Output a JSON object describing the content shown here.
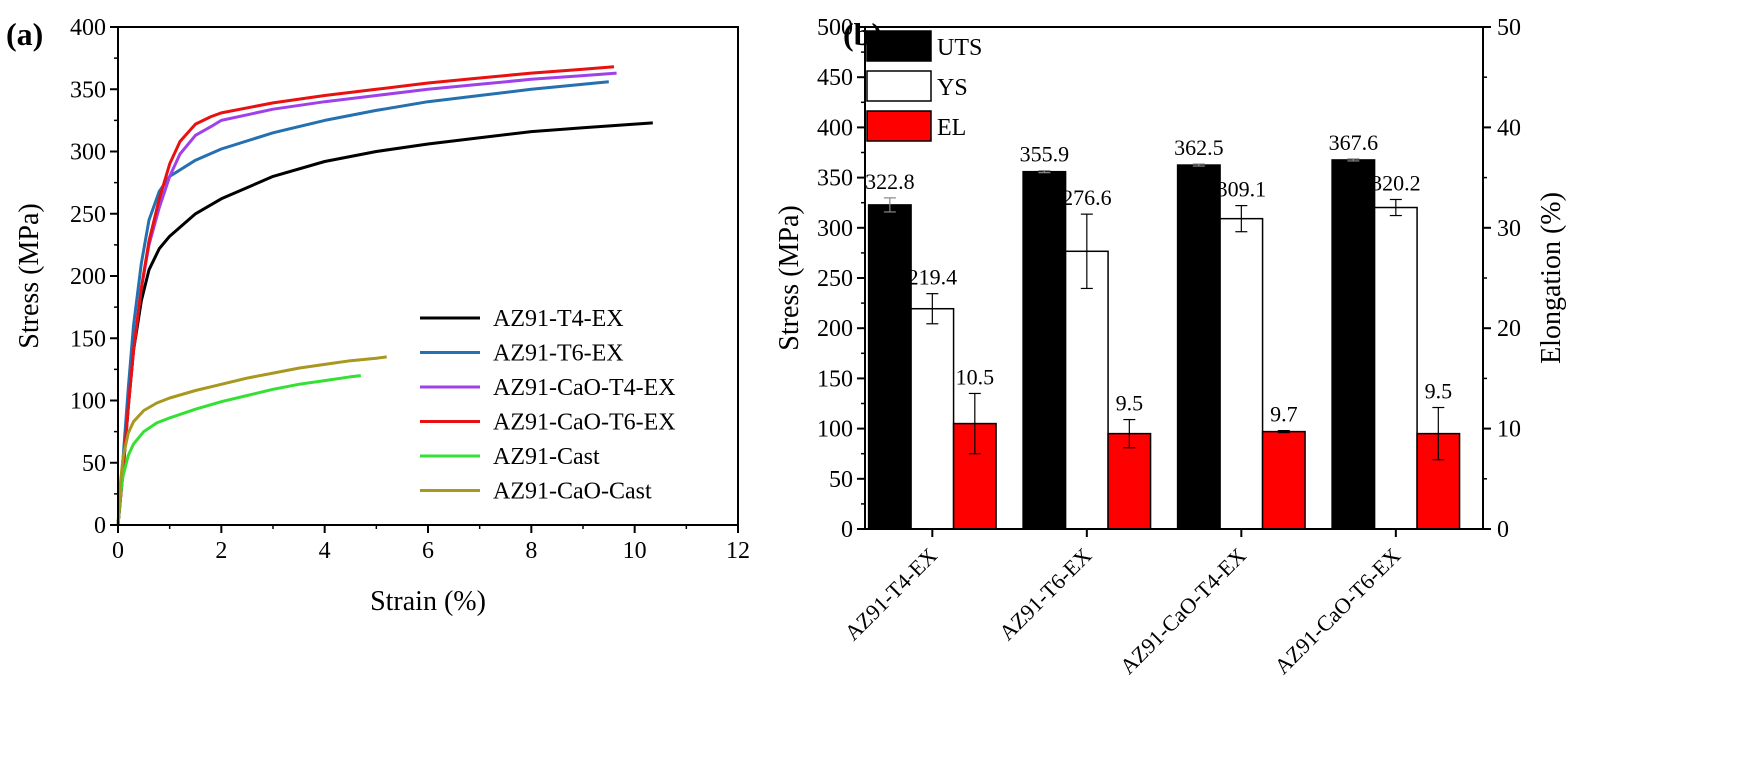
{
  "chart_data": [
    {
      "type": "line",
      "panel_label": "(a)",
      "xlabel": "Strain (%)",
      "ylabel": "Stress (MPa)",
      "xlim": [
        0,
        12
      ],
      "ylim": [
        0,
        400
      ],
      "xticks": [
        "0",
        "2",
        "4",
        "6",
        "8",
        "10",
        "12"
      ],
      "yticks": [
        "0",
        "50",
        "100",
        "150",
        "200",
        "250",
        "300",
        "350",
        "400"
      ],
      "legend_position": "lower-right",
      "grid": false,
      "series": [
        {
          "name": "AZ91-T4-EX",
          "color": "#000000",
          "x": [
            0,
            0.1,
            0.2,
            0.3,
            0.45,
            0.6,
            0.8,
            1.0,
            1.5,
            2.0,
            3.0,
            4.0,
            5.0,
            6.0,
            7.0,
            8.0,
            9.0,
            10.0,
            10.35
          ],
          "y": [
            0,
            45,
            95,
            140,
            180,
            205,
            222,
            232,
            250,
            262,
            280,
            292,
            300,
            306,
            311,
            316,
            319,
            322,
            323
          ]
        },
        {
          "name": "AZ91-T6-EX",
          "color": "#2470b0",
          "x": [
            0,
            0.1,
            0.2,
            0.3,
            0.45,
            0.6,
            0.8,
            1.0,
            1.5,
            2.0,
            3.0,
            4.0,
            5.0,
            6.0,
            7.0,
            8.0,
            9.0,
            9.5
          ],
          "y": [
            0,
            55,
            110,
            160,
            210,
            245,
            268,
            280,
            293,
            302,
            315,
            325,
            333,
            340,
            345,
            350,
            354,
            356
          ]
        },
        {
          "name": "AZ91-CaO-T4-EX",
          "color": "#a040e8",
          "x": [
            0,
            0.1,
            0.2,
            0.3,
            0.45,
            0.6,
            0.8,
            1.0,
            1.2,
            1.5,
            1.8,
            2.0,
            3.0,
            4.0,
            5.0,
            6.0,
            7.0,
            8.0,
            9.0,
            9.65
          ],
          "y": [
            0,
            45,
            95,
            140,
            190,
            225,
            255,
            280,
            298,
            313,
            320,
            325,
            334,
            340,
            345,
            350,
            354,
            358,
            361,
            363
          ]
        },
        {
          "name": "AZ91-CaO-T6-EX",
          "color": "#e81010",
          "x": [
            0,
            0.1,
            0.2,
            0.3,
            0.45,
            0.6,
            0.8,
            1.0,
            1.2,
            1.5,
            1.8,
            2.0,
            3.0,
            4.0,
            5.0,
            6.0,
            7.0,
            8.0,
            9.0,
            9.6
          ],
          "y": [
            0,
            45,
            95,
            140,
            190,
            228,
            262,
            290,
            308,
            322,
            328,
            331,
            339,
            345,
            350,
            355,
            359,
            363,
            366,
            368
          ]
        },
        {
          "name": "AZ91-Cast",
          "color": "#33e033",
          "x": [
            0,
            0.05,
            0.1,
            0.2,
            0.3,
            0.5,
            0.75,
            1.0,
            1.5,
            2.0,
            2.5,
            3.0,
            3.5,
            4.0,
            4.5,
            4.7
          ],
          "y": [
            0,
            25,
            40,
            56,
            65,
            75,
            82,
            86,
            93,
            99,
            104,
            109,
            113,
            116,
            119,
            120
          ]
        },
        {
          "name": "AZ91-CaO-Cast",
          "color": "#a89820",
          "x": [
            0,
            0.05,
            0.1,
            0.2,
            0.3,
            0.5,
            0.75,
            1.0,
            1.5,
            2.0,
            2.5,
            3.0,
            3.5,
            4.0,
            4.5,
            5.0,
            5.2
          ],
          "y": [
            0,
            35,
            55,
            74,
            83,
            92,
            98,
            102,
            108,
            113,
            118,
            122,
            126,
            129,
            132,
            134,
            135
          ]
        }
      ]
    },
    {
      "type": "bar",
      "panel_label": "(b)",
      "categories": [
        "AZ91-T4-EX",
        "AZ91-T6-EX",
        "AZ91-CaO-T4-EX",
        "AZ91-CaO-T6-EX"
      ],
      "ylabel": "Stress (MPa)",
      "y2label": "Elongation (%)",
      "ylim": [
        0,
        500
      ],
      "y2lim": [
        0,
        50
      ],
      "yticks": [
        "0",
        "50",
        "100",
        "150",
        "200",
        "250",
        "300",
        "350",
        "400",
        "450",
        "500"
      ],
      "y2ticks": [
        "0",
        "10",
        "20",
        "30",
        "40",
        "50"
      ],
      "legend_position": "top-left",
      "grid": false,
      "series": [
        {
          "name": "UTS",
          "axis": "left",
          "fill": "#000000",
          "values": [
            322.8,
            355.9,
            362.5,
            367.6
          ],
          "errors": [
            7,
            1,
            1,
            1
          ],
          "labels": [
            "322.8",
            "355.9",
            "362.5",
            "367.6"
          ]
        },
        {
          "name": "YS",
          "axis": "left",
          "fill": "#ffffff",
          "values": [
            219.4,
            276.6,
            309.1,
            320.2
          ],
          "errors": [
            15,
            37,
            13,
            8
          ],
          "labels": [
            "219.4",
            "276.6",
            "309.1",
            "320.2"
          ]
        },
        {
          "name": "EL",
          "axis": "right",
          "fill": "#ff0000",
          "values": [
            10.5,
            9.5,
            9.7,
            9.5
          ],
          "errors": [
            3.0,
            1.4,
            0.1,
            2.6
          ],
          "labels": [
            "10.5",
            "9.5",
            "9.7",
            "9.5"
          ]
        }
      ]
    }
  ]
}
